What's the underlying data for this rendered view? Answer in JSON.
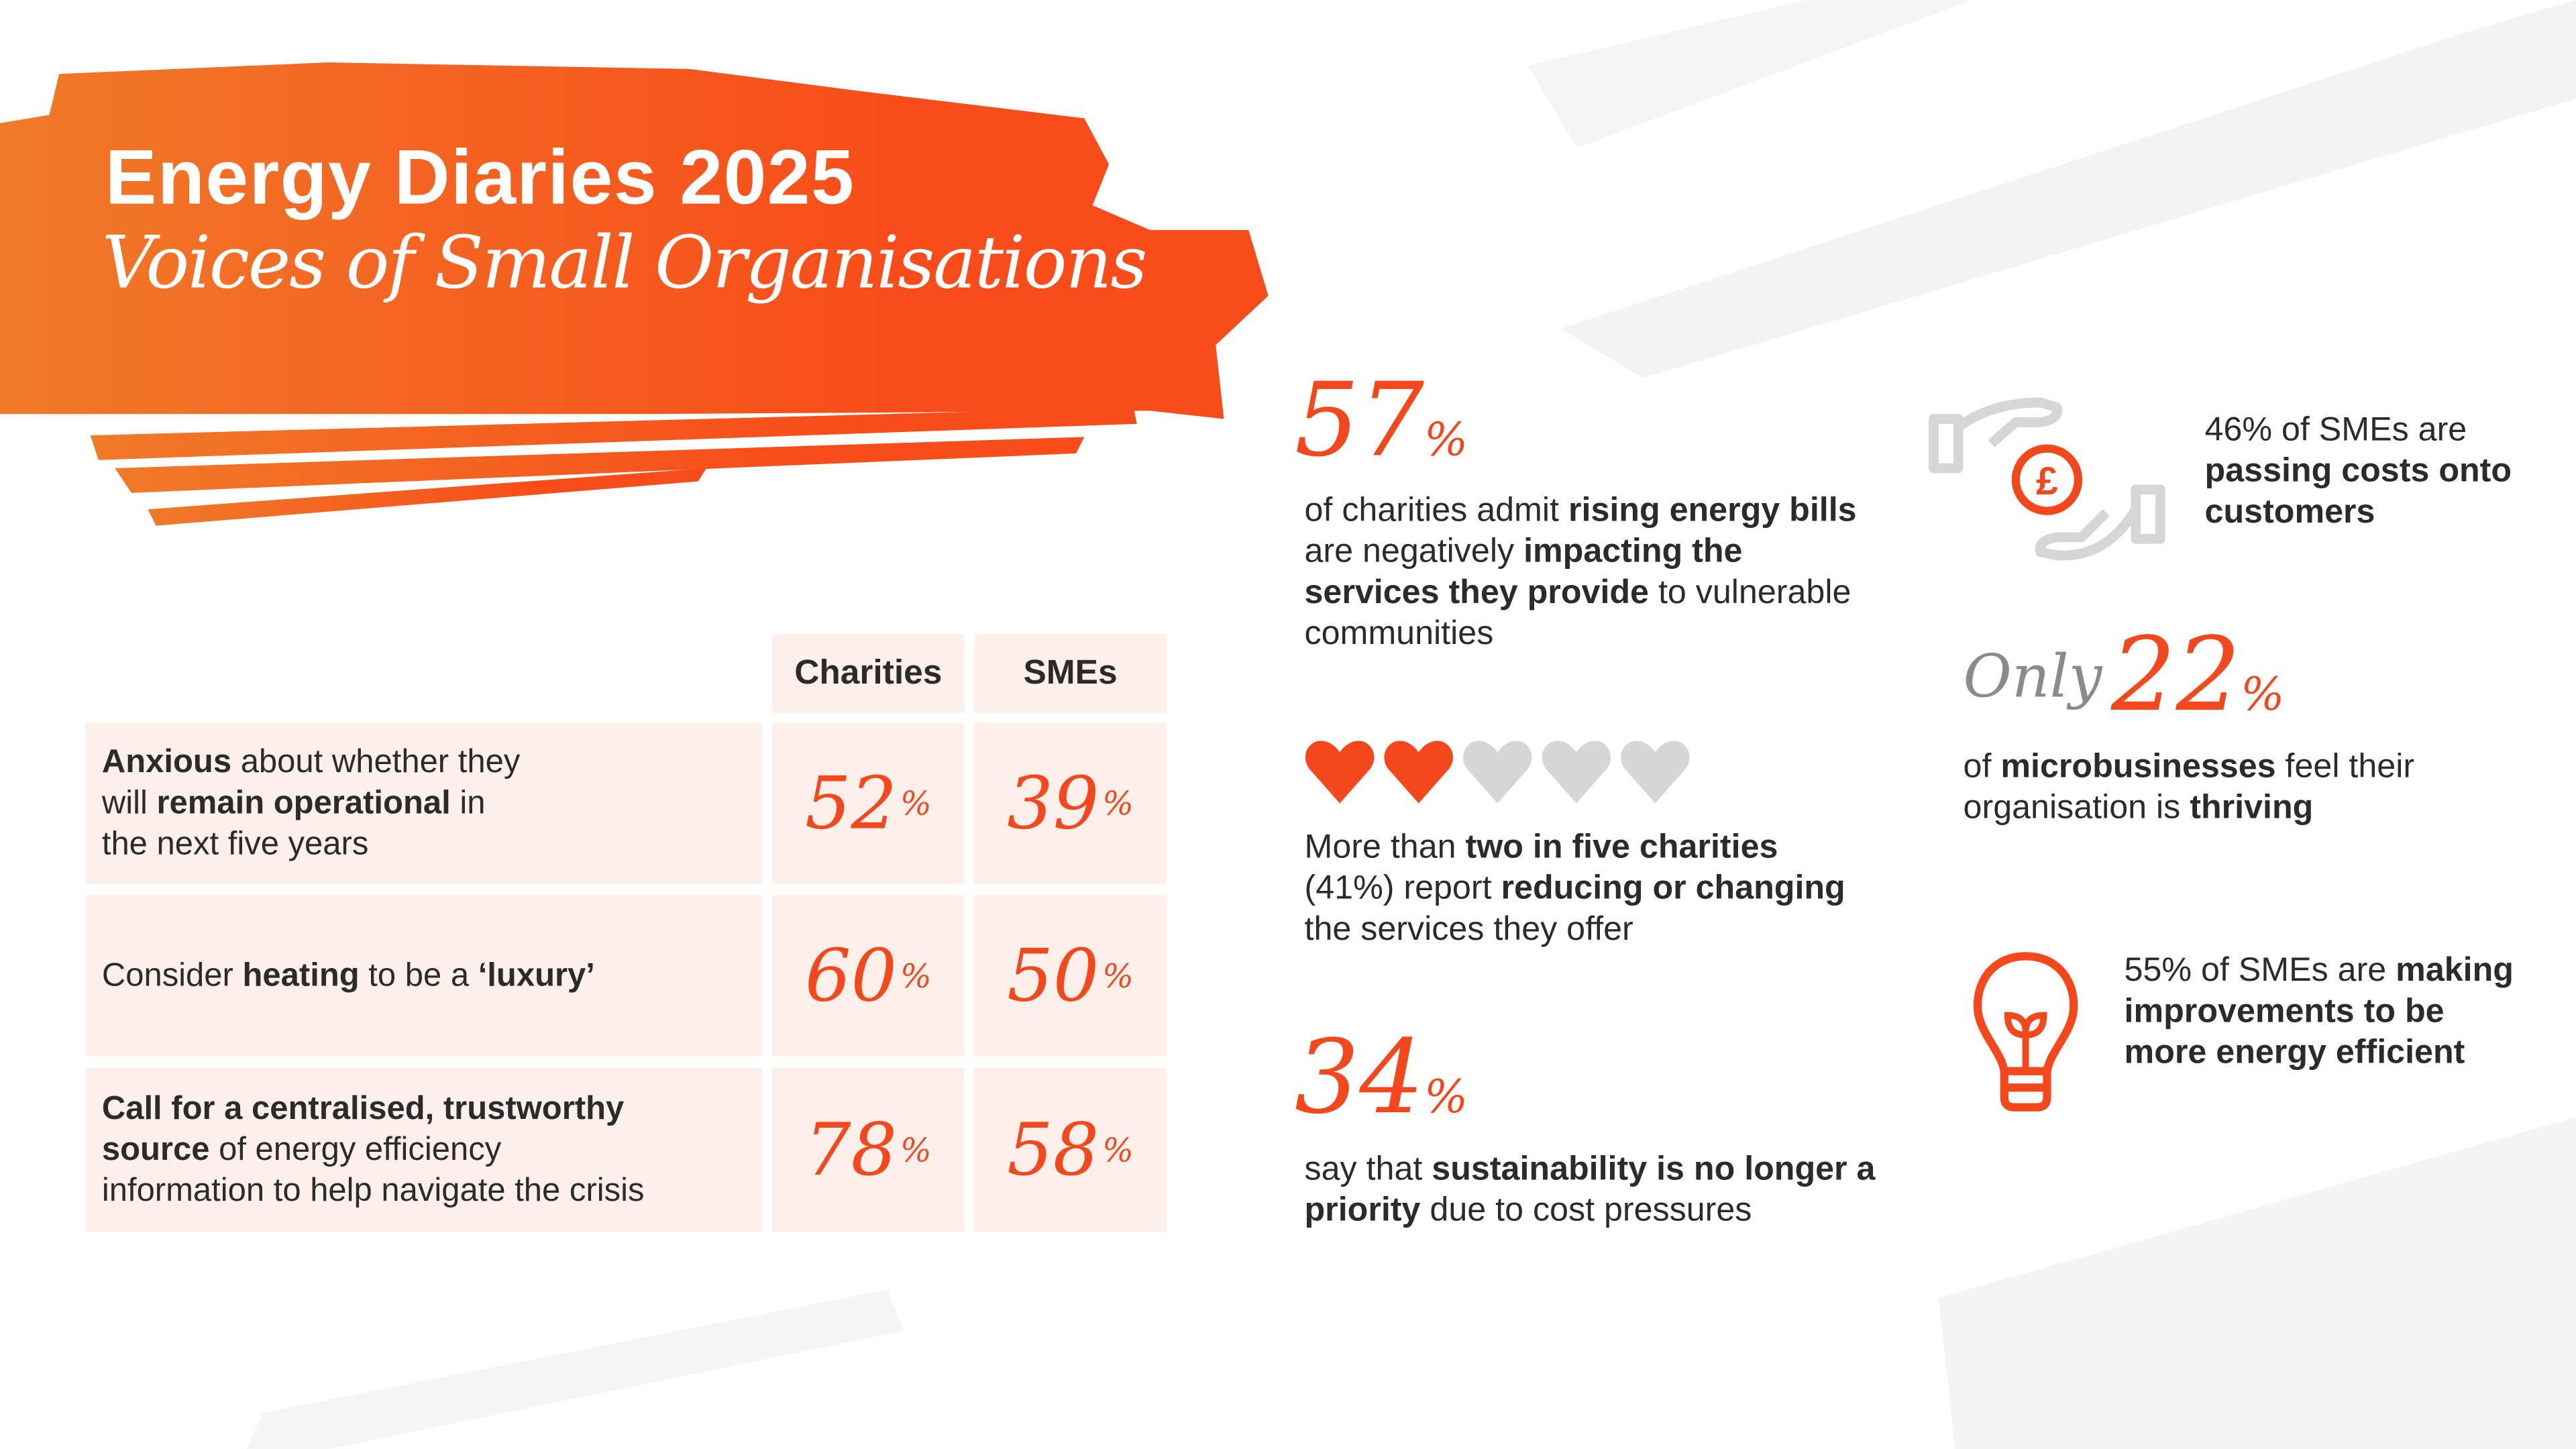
{
  "header": {
    "title": "Energy Diaries 2025",
    "subtitle": "Voices of Small Organisations"
  },
  "colors": {
    "accent": "#f4471c",
    "gradient_start": "#f07a28",
    "cell_bg": "#fdf0ea",
    "grey_icon": "#d6d6d6"
  },
  "table": {
    "columns": [
      "Charities",
      "SMEs"
    ],
    "rows": [
      {
        "label_parts": [
          "Anxious",
          " about whether they",
          "will ",
          "remain operational",
          " in",
          "the next five years"
        ],
        "charities": "52",
        "smes": "39"
      },
      {
        "label_parts": [
          "Consider ",
          "heating",
          " to be a ",
          "‘luxury’"
        ],
        "charities": "60",
        "smes": "50"
      },
      {
        "label_parts": [
          "Call for a centralised, trustworthy",
          "source",
          " of energy efficiency",
          "information to help navigate the crisis"
        ],
        "charities": "78",
        "smes": "58"
      }
    ],
    "percent_sign": "%"
  },
  "stats": {
    "s57": {
      "value": "57",
      "parts": [
        "of charities admit ",
        "rising energy bills",
        " are negatively ",
        "impacting the services they provide",
        " to vulnerable communities"
      ]
    },
    "hearts": {
      "filled": 2,
      "total": 5,
      "parts": [
        "More than ",
        "two in five charities",
        " (41%) report ",
        "reducing or changing",
        " the services they offer"
      ]
    },
    "s34": {
      "value": "34",
      "parts": [
        "say that ",
        "sustainability is no longer a priority",
        " due to cost pressures"
      ]
    },
    "s46": {
      "icon": "hands-pound-icon",
      "parts": [
        "46% of SMEs are ",
        "passing costs onto customers"
      ]
    },
    "s22": {
      "prefix": "Only",
      "value": "22",
      "parts": [
        "of ",
        "microbusinesses",
        " feel their organisation is ",
        "thriving"
      ]
    },
    "s55": {
      "icon": "lightbulb-plant-icon",
      "parts": [
        "55% of SMEs are ",
        "making improvements to be more energy efficient"
      ]
    }
  }
}
